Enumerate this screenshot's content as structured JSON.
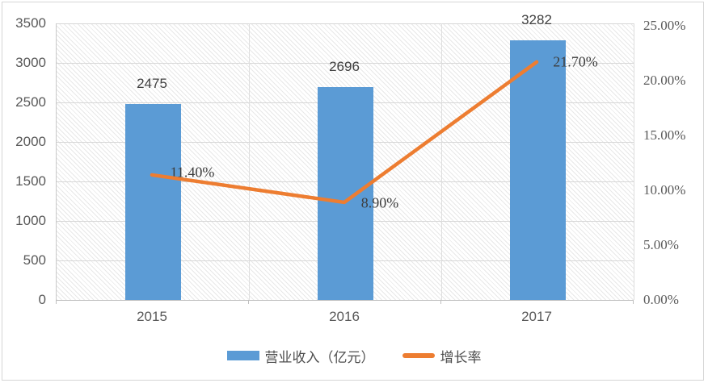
{
  "chart_data": {
    "type": "combo-bar-line-dual-axis",
    "title": "",
    "categories": [
      "2015",
      "2016",
      "2017"
    ],
    "series": [
      {
        "name": "营业收入（亿元）",
        "type": "bar",
        "y_axis": "left",
        "values": [
          2475,
          2696,
          3282
        ],
        "data_labels": [
          "2475",
          "2696",
          "3282"
        ],
        "color": "#5b9bd5"
      },
      {
        "name": "增长率",
        "type": "line",
        "y_axis": "right",
        "values": [
          11.4,
          8.9,
          21.7
        ],
        "data_labels": [
          "11.40%",
          "8.90%",
          "21.70%"
        ],
        "color": "#ed7d31"
      }
    ],
    "left_axis": {
      "min": 0,
      "max": 3500,
      "step": 500,
      "ticks": [
        "3500",
        "3000",
        "2500",
        "2000",
        "1500",
        "1000",
        "500",
        "0"
      ]
    },
    "right_axis": {
      "min": 0,
      "max": 25,
      "step": 5,
      "ticks": [
        "25.00%",
        "20.00%",
        "15.00%",
        "10.00%",
        "5.00%",
        "0.00%"
      ]
    },
    "grid": true,
    "plot_background": "diagonal-hatch",
    "legend_position": "bottom",
    "legend": [
      {
        "label": "营业收入（亿元）",
        "swatch": "bar",
        "color": "#5b9bd5"
      },
      {
        "label": "增长率",
        "swatch": "line",
        "color": "#ed7d31"
      }
    ]
  },
  "colors": {
    "bar": "#5b9bd5",
    "line": "#ed7d31",
    "gridline": "#d7d7d7",
    "axis_line": "#bfbfbf",
    "tick_text": "#595959",
    "data_label_text": "#404040",
    "figure_border": "#d6d6d6"
  }
}
